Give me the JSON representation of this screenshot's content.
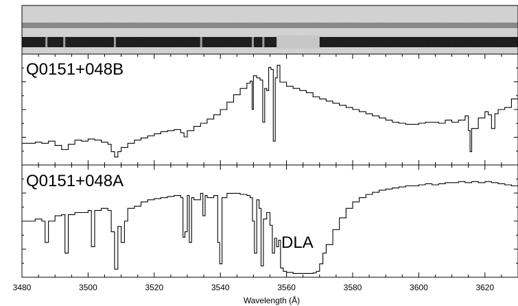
{
  "chart_data": {
    "type": "line",
    "xlabel": "Wavelength (Å)",
    "xlim": [
      3480,
      3630
    ],
    "x_ticks": [
      3480,
      3500,
      3520,
      3540,
      3560,
      3580,
      3600,
      3620
    ],
    "x_tick_labels": [
      "3480",
      "3500",
      "3520",
      "3540",
      "3560",
      "3580",
      "3600",
      "3620"
    ],
    "image_strip": {
      "description_of_traces": [
        "faint upper trace",
        "bright lower trace with dark gap"
      ],
      "lower_trace_gap_start": 3557,
      "lower_trace_gap_end": 3570
    },
    "panels": [
      {
        "title": "Q0151+048B",
        "ylim": [
          0,
          1
        ],
        "series": [
          {
            "x": [
              3480,
              3484,
              3486,
              3488,
              3490,
              3492,
              3494,
              3496,
              3498,
              3500,
              3502,
              3504,
              3506,
              3507,
              3508,
              3509,
              3510,
              3512,
              3514,
              3516,
              3518,
              3520,
              3522,
              3524,
              3526,
              3528,
              3529,
              3530,
              3532,
              3534,
              3536,
              3538,
              3540,
              3542,
              3544,
              3546,
              3548,
              3549,
              3549.6,
              3550,
              3551,
              3552,
              3552.8,
              3553.4,
              3554,
              3554.6,
              3555.3,
              3556,
              3556.6,
              3557.2,
              3558,
              3560,
              3562,
              3564,
              3566,
              3568,
              3570,
              3572,
              3574,
              3576,
              3578,
              3580,
              3582,
              3584,
              3586,
              3588,
              3590,
              3592,
              3594,
              3596,
              3598,
              3600,
              3602,
              3604,
              3606,
              3608,
              3610,
              3612,
              3614,
              3615,
              3615.5,
              3616,
              3618,
              3620,
              3621,
              3622,
              3623,
              3624,
              3626,
              3628,
              3630
            ],
            "y": [
              0.18,
              0.19,
              0.18,
              0.2,
              0.16,
              0.12,
              0.17,
              0.21,
              0.2,
              0.22,
              0.21,
              0.19,
              0.17,
              0.1,
              0.05,
              0.1,
              0.14,
              0.18,
              0.21,
              0.23,
              0.25,
              0.27,
              0.29,
              0.3,
              0.31,
              0.28,
              0.24,
              0.3,
              0.34,
              0.37,
              0.41,
              0.45,
              0.5,
              0.57,
              0.64,
              0.7,
              0.75,
              0.77,
              0.5,
              0.82,
              0.8,
              0.78,
              0.38,
              0.7,
              0.68,
              0.9,
              0.88,
              0.2,
              0.8,
              0.92,
              0.76,
              0.72,
              0.7,
              0.68,
              0.66,
              0.62,
              0.6,
              0.58,
              0.56,
              0.54,
              0.52,
              0.5,
              0.48,
              0.46,
              0.44,
              0.42,
              0.4,
              0.38,
              0.37,
              0.36,
              0.36,
              0.37,
              0.38,
              0.38,
              0.37,
              0.4,
              0.38,
              0.4,
              0.44,
              0.3,
              0.1,
              0.32,
              0.42,
              0.48,
              0.45,
              0.32,
              0.46,
              0.5,
              0.52,
              0.6,
              0.62
            ]
          }
        ]
      },
      {
        "title": "Q0151+048A",
        "ylim": [
          0,
          1
        ],
        "annotation": {
          "text": "DLA",
          "x": 3563,
          "y": 0.3
        },
        "series": [
          {
            "x": [
              3480,
              3484,
              3486,
              3487,
              3488,
              3490,
              3492,
              3493,
              3494,
              3496,
              3498,
              3500,
              3501,
              3502,
              3504,
              3506,
              3507,
              3508,
              3509,
              3510,
              3511,
              3512,
              3514,
              3516,
              3518,
              3520,
              3522,
              3524,
              3526,
              3528,
              3528.7,
              3529.3,
              3530,
              3530.6,
              3531.3,
              3532,
              3534,
              3534.7,
              3535.4,
              3536,
              3538,
              3539.2,
              3539.8,
              3540.5,
              3542,
              3544,
              3546,
              3548,
              3549,
              3549.7,
              3550.3,
              3551,
              3551.7,
              3552.3,
              3553,
              3554,
              3555,
              3555.7,
              3556.4,
              3557,
              3557.6,
              3558.2,
              3559,
              3560,
              3562,
              3564,
              3566,
              3568,
              3569,
              3570,
              3571,
              3572,
              3574,
              3576,
              3578,
              3580,
              3582,
              3584,
              3586,
              3588,
              3590,
              3592,
              3594,
              3596,
              3598,
              3600,
              3602,
              3604,
              3606,
              3608,
              3610,
              3612,
              3614,
              3616,
              3618,
              3620,
              3622,
              3624,
              3626,
              3628,
              3630
            ],
            "y": [
              0.5,
              0.52,
              0.5,
              0.3,
              0.5,
              0.55,
              0.56,
              0.2,
              0.56,
              0.58,
              0.58,
              0.6,
              0.26,
              0.6,
              0.62,
              0.6,
              0.4,
              0.05,
              0.45,
              0.3,
              0.5,
              0.62,
              0.64,
              0.68,
              0.7,
              0.71,
              0.72,
              0.73,
              0.74,
              0.72,
              0.35,
              0.4,
              0.74,
              0.3,
              0.72,
              0.7,
              0.76,
              0.55,
              0.74,
              0.72,
              0.74,
              0.3,
              0.1,
              0.72,
              0.76,
              0.76,
              0.75,
              0.74,
              0.72,
              0.5,
              0.2,
              0.7,
              0.62,
              0.08,
              0.52,
              0.58,
              0.46,
              0.2,
              0.34,
              0.26,
              0.32,
              0.06,
              0.03,
              0.02,
              0.01,
              0.01,
              0.01,
              0.015,
              0.03,
              0.1,
              0.2,
              0.28,
              0.42,
              0.53,
              0.62,
              0.68,
              0.72,
              0.75,
              0.77,
              0.79,
              0.8,
              0.81,
              0.82,
              0.83,
              0.83,
              0.84,
              0.85,
              0.84,
              0.85,
              0.86,
              0.86,
              0.87,
              0.86,
              0.87,
              0.86,
              0.87,
              0.86,
              0.85,
              0.84,
              0.83,
              0.84
            ]
          }
        ]
      }
    ]
  }
}
